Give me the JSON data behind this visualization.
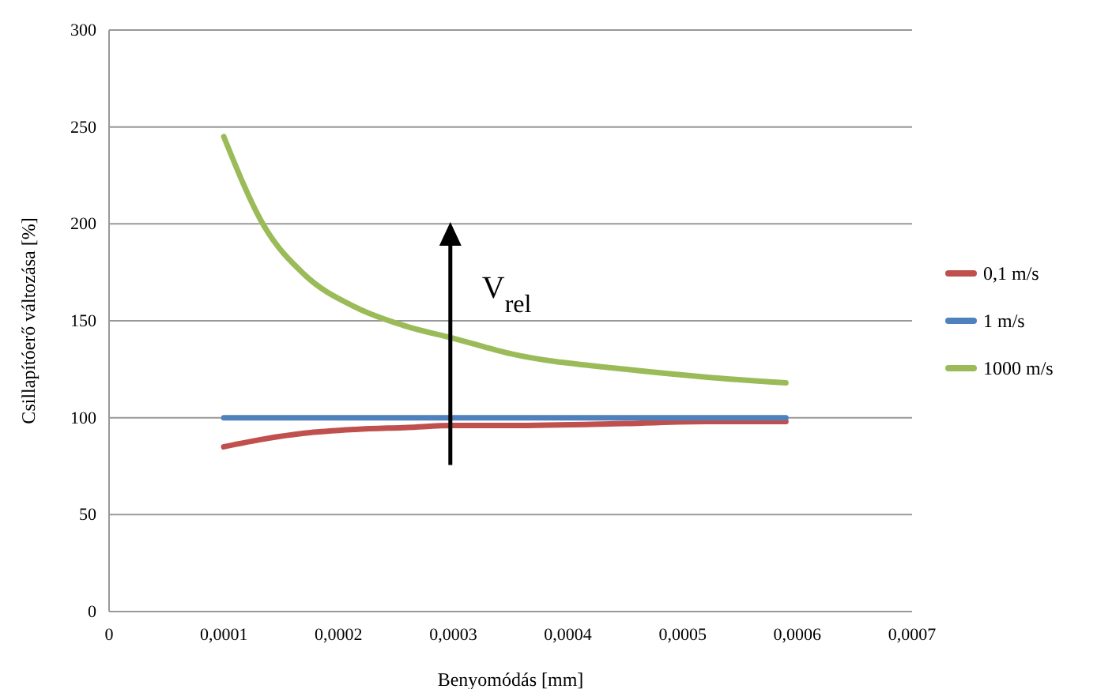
{
  "chart_data": {
    "type": "line",
    "xlabel": "Benyomódás [mm]",
    "ylabel": "Csillapítóerő változása [%]",
    "xlim": [
      0,
      0.0007
    ],
    "xticks": [
      {
        "value": 0,
        "label": "0"
      },
      {
        "value": 0.0001,
        "label": "0,0001"
      },
      {
        "value": 0.0002,
        "label": "0,0002"
      },
      {
        "value": 0.0003,
        "label": "0,0003"
      },
      {
        "value": 0.0004,
        "label": "0,0004"
      },
      {
        "value": 0.0005,
        "label": "0,0005"
      },
      {
        "value": 0.0006,
        "label": "0,0006"
      },
      {
        "value": 0.0007,
        "label": "0,0007"
      }
    ],
    "ylim": [
      0,
      300
    ],
    "yticks": [
      0,
      50,
      100,
      150,
      200,
      250,
      300
    ],
    "grid": "y",
    "legend": "right",
    "marker": "none",
    "line_style": "solid",
    "annotations": [
      "V$_{rel}$"
    ],
    "x": [
      0.0001,
      0.000135,
      0.00017,
      0.000215,
      0.00026,
      0.0003,
      0.00035,
      0.00045,
      0.00052,
      0.00059
    ],
    "series": [
      {
        "name": "0,1 m/s",
        "color": "#c0504d",
        "values": [
          85,
          89,
          92,
          94,
          95,
          96,
          96,
          97,
          98,
          98
        ]
      },
      {
        "name": "1 m/s",
        "color": "#4f81bd",
        "values": [
          100,
          100,
          100,
          100,
          100,
          100,
          100,
          100,
          100,
          100
        ]
      },
      {
        "name": "1000 m/s",
        "color": "#9bbb59",
        "values": [
          245,
          199,
          174,
          157,
          147,
          141,
          133,
          125,
          121,
          118
        ]
      }
    ]
  }
}
